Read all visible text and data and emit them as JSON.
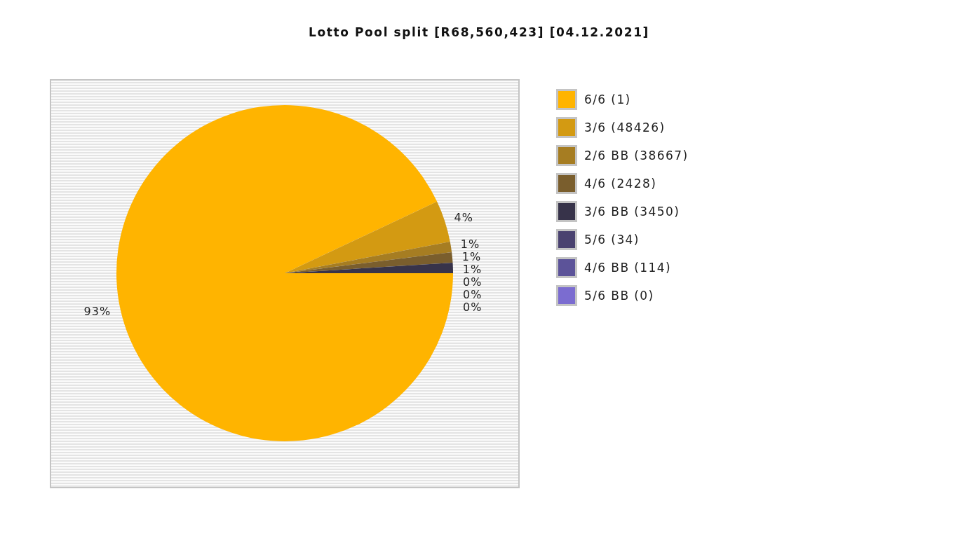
{
  "chart_data": {
    "type": "pie",
    "title": "Lotto Pool split [R68,560,423] [04.12.2021]",
    "categories": [
      "6/6 (1)",
      "3/6 (48426)",
      "2/6 BB (38667)",
      "4/6 (2428)",
      "3/6 BB (3450)",
      "5/6 (34)",
      "4/6 BB (114)",
      "5/6 BB (0)"
    ],
    "values": [
      93,
      4,
      1,
      1,
      1,
      0,
      0,
      0
    ],
    "value_labels": [
      "93%",
      "4%",
      "1%",
      "1%",
      "1%",
      "0%",
      "0%",
      "0%"
    ],
    "colors": [
      "#ffb400",
      "#d39a12",
      "#a67d22",
      "#7a5e2d",
      "#37334a",
      "#4a4270",
      "#5c5399",
      "#7b6cd0"
    ],
    "legend": "right"
  }
}
